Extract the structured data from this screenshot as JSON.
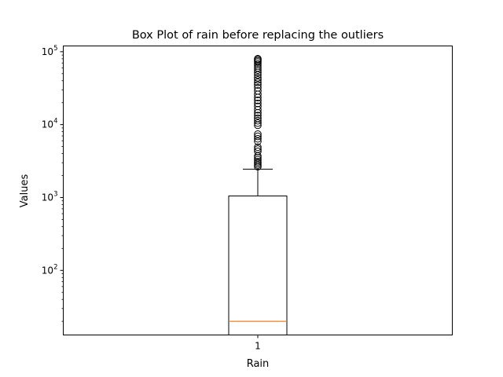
{
  "chart_data": {
    "type": "box",
    "title": "Box Plot of rain before replacing the outliers",
    "xlabel": "Rain",
    "ylabel": "Values",
    "categories": [
      "1"
    ],
    "yscale": "log",
    "ylim": [
      13,
      120000
    ],
    "yticks": [
      {
        "value": 100,
        "base": "10",
        "exp": "2"
      },
      {
        "value": 1000,
        "base": "10",
        "exp": "3"
      },
      {
        "value": 10000,
        "base": "10",
        "exp": "4"
      },
      {
        "value": 100000,
        "base": "10",
        "exp": "5"
      }
    ],
    "box": {
      "q1": 13,
      "median": 20,
      "q3": 1050,
      "whisker_low": 13,
      "whisker_high": 2450
    },
    "outliers": [
      2650,
      2800,
      2950,
      3100,
      3300,
      3500,
      3700,
      4300,
      4600,
      4900,
      5900,
      6400,
      6900,
      7400,
      9800,
      10500,
      11300,
      12200,
      13300,
      14500,
      16000,
      17800,
      19500,
      21500,
      23500,
      26000,
      29000,
      32000,
      35000,
      38000,
      41000,
      44000,
      48000,
      52000,
      56000,
      60000,
      64000,
      68000,
      72000,
      75000,
      78000,
      80000
    ],
    "colors": {
      "median": "#ff7f0e",
      "box": "#000000"
    },
    "grid": false
  }
}
